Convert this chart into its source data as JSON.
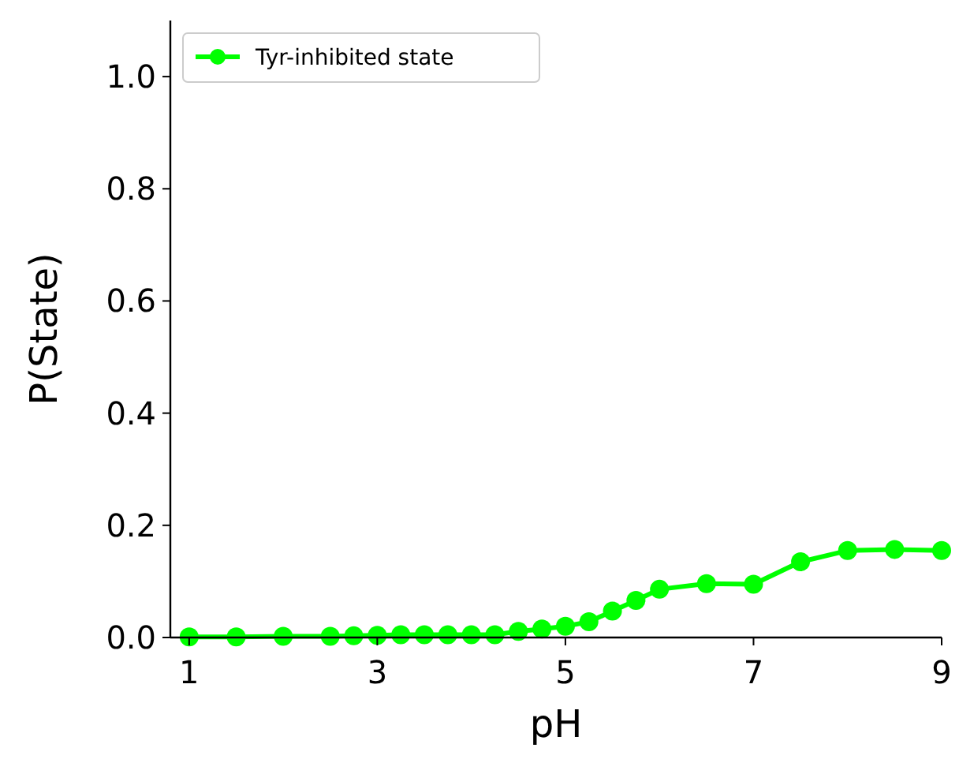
{
  "chart_data": {
    "type": "line",
    "xlabel": "pH",
    "ylabel": "P(State)",
    "x": [
      1,
      1.5,
      2,
      2.5,
      2.75,
      3,
      3.25,
      3.5,
      3.75,
      4,
      4.25,
      4.5,
      4.75,
      5,
      5.25,
      5.5,
      5.75,
      6,
      6.5,
      7,
      7.5,
      8,
      8.5,
      9
    ],
    "series": [
      {
        "name": "Tyr-inhibited state",
        "color": "#00ff00",
        "values": [
          0.001,
          0.001,
          0.002,
          0.002,
          0.003,
          0.004,
          0.005,
          0.005,
          0.005,
          0.005,
          0.005,
          0.011,
          0.015,
          0.02,
          0.028,
          0.047,
          0.066,
          0.086,
          0.096,
          0.095,
          0.135,
          0.155,
          0.157,
          0.155
        ]
      }
    ],
    "xlim": [
      0.8,
      9
    ],
    "ylim": [
      0,
      1.1
    ],
    "xticks": [
      1,
      3,
      5,
      7,
      9
    ],
    "yticks": [
      {
        "value": 0,
        "label": "0.0"
      },
      0.2,
      0.4,
      0.6,
      0.8,
      {
        "value": 1,
        "label": "1.0"
      }
    ],
    "marker": "circle",
    "line_style": "solid",
    "legend": "top left",
    "grid": false
  }
}
